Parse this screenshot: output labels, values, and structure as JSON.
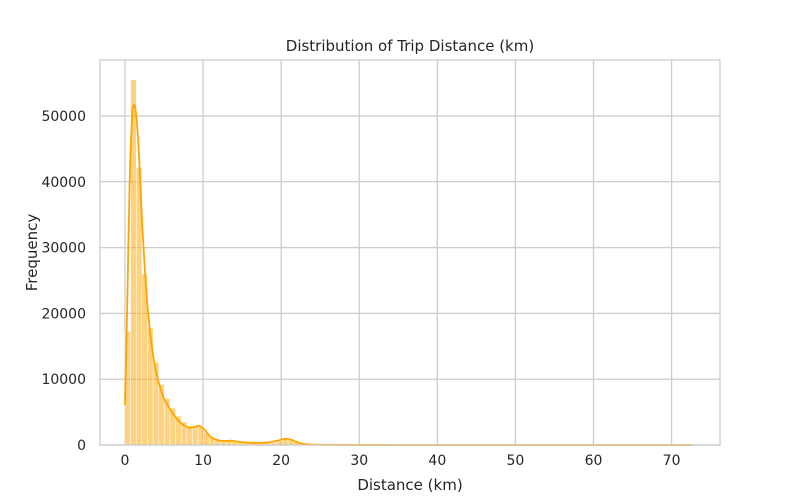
{
  "chart_data": {
    "type": "bar",
    "title": "Distribution of Trip Distance (km)",
    "xlabel": "Distance (km)",
    "ylabel": "Frequency",
    "xlim": [
      -3.2,
      76.2
    ],
    "ylim": [
      0,
      58500
    ],
    "xticks": [
      0,
      10,
      20,
      30,
      40,
      50,
      60,
      70
    ],
    "yticks": [
      0,
      10000,
      20000,
      30000,
      40000,
      50000
    ],
    "xtick_labels": [
      "0",
      "10",
      "20",
      "30",
      "40",
      "50",
      "60",
      "70"
    ],
    "ytick_labels": [
      "0",
      "10000",
      "20000",
      "30000",
      "40000",
      "50000"
    ],
    "grid": true,
    "legend": "none",
    "bar_color": "#FFA500",
    "kde_color": "#FFA500",
    "bin_width": 0.72,
    "bins": [
      {
        "x0": 0.0,
        "value": 17300
      },
      {
        "x0": 0.72,
        "value": 55500
      },
      {
        "x0": 1.44,
        "value": 42200
      },
      {
        "x0": 2.16,
        "value": 26000
      },
      {
        "x0": 2.88,
        "value": 17800
      },
      {
        "x0": 3.6,
        "value": 12600
      },
      {
        "x0": 4.32,
        "value": 9200
      },
      {
        "x0": 5.04,
        "value": 7100
      },
      {
        "x0": 5.76,
        "value": 5600
      },
      {
        "x0": 6.48,
        "value": 4400
      },
      {
        "x0": 7.2,
        "value": 3500
      },
      {
        "x0": 7.92,
        "value": 2900
      },
      {
        "x0": 8.64,
        "value": 2800
      },
      {
        "x0": 9.36,
        "value": 2700
      },
      {
        "x0": 10.08,
        "value": 1900
      },
      {
        "x0": 10.8,
        "value": 1200
      },
      {
        "x0": 11.52,
        "value": 800
      },
      {
        "x0": 12.24,
        "value": 600
      },
      {
        "x0": 12.96,
        "value": 650
      },
      {
        "x0": 13.68,
        "value": 600
      },
      {
        "x0": 14.4,
        "value": 450
      },
      {
        "x0": 15.12,
        "value": 350
      },
      {
        "x0": 15.84,
        "value": 300
      },
      {
        "x0": 16.56,
        "value": 300
      },
      {
        "x0": 17.28,
        "value": 300
      },
      {
        "x0": 18.0,
        "value": 300
      },
      {
        "x0": 18.72,
        "value": 350
      },
      {
        "x0": 19.44,
        "value": 600
      },
      {
        "x0": 20.16,
        "value": 1000
      },
      {
        "x0": 20.88,
        "value": 900
      },
      {
        "x0": 21.6,
        "value": 500
      },
      {
        "x0": 22.32,
        "value": 250
      },
      {
        "x0": 23.04,
        "value": 100
      },
      {
        "x0": 23.76,
        "value": 50
      },
      {
        "x0": 24.48,
        "value": 20
      },
      {
        "x0": 25.2,
        "value": 10
      }
    ],
    "kde": [
      {
        "x": 0.0,
        "y": 6200
      },
      {
        "x": 0.3,
        "y": 22000
      },
      {
        "x": 0.6,
        "y": 40000
      },
      {
        "x": 0.9,
        "y": 49500
      },
      {
        "x": 1.1,
        "y": 51600
      },
      {
        "x": 1.4,
        "y": 50500
      },
      {
        "x": 1.8,
        "y": 44000
      },
      {
        "x": 2.2,
        "y": 33500
      },
      {
        "x": 2.6,
        "y": 25500
      },
      {
        "x": 3.0,
        "y": 19500
      },
      {
        "x": 3.5,
        "y": 14500
      },
      {
        "x": 4.0,
        "y": 11000
      },
      {
        "x": 4.5,
        "y": 8800
      },
      {
        "x": 5.0,
        "y": 7000
      },
      {
        "x": 6.0,
        "y": 5000
      },
      {
        "x": 7.0,
        "y": 3500
      },
      {
        "x": 8.0,
        "y": 2700
      },
      {
        "x": 8.8,
        "y": 2700
      },
      {
        "x": 9.5,
        "y": 2900
      },
      {
        "x": 10.2,
        "y": 2300
      },
      {
        "x": 11.0,
        "y": 1200
      },
      {
        "x": 12.0,
        "y": 700
      },
      {
        "x": 13.0,
        "y": 620
      },
      {
        "x": 13.8,
        "y": 650
      },
      {
        "x": 14.5,
        "y": 480
      },
      {
        "x": 16.0,
        "y": 350
      },
      {
        "x": 18.0,
        "y": 350
      },
      {
        "x": 19.5,
        "y": 650
      },
      {
        "x": 20.5,
        "y": 950
      },
      {
        "x": 21.3,
        "y": 800
      },
      {
        "x": 22.0,
        "y": 450
      },
      {
        "x": 23.0,
        "y": 150
      },
      {
        "x": 25.0,
        "y": 40
      },
      {
        "x": 30.0,
        "y": 10
      },
      {
        "x": 40.0,
        "y": 5
      },
      {
        "x": 55.0,
        "y": 3
      },
      {
        "x": 72.5,
        "y": 0
      }
    ]
  }
}
